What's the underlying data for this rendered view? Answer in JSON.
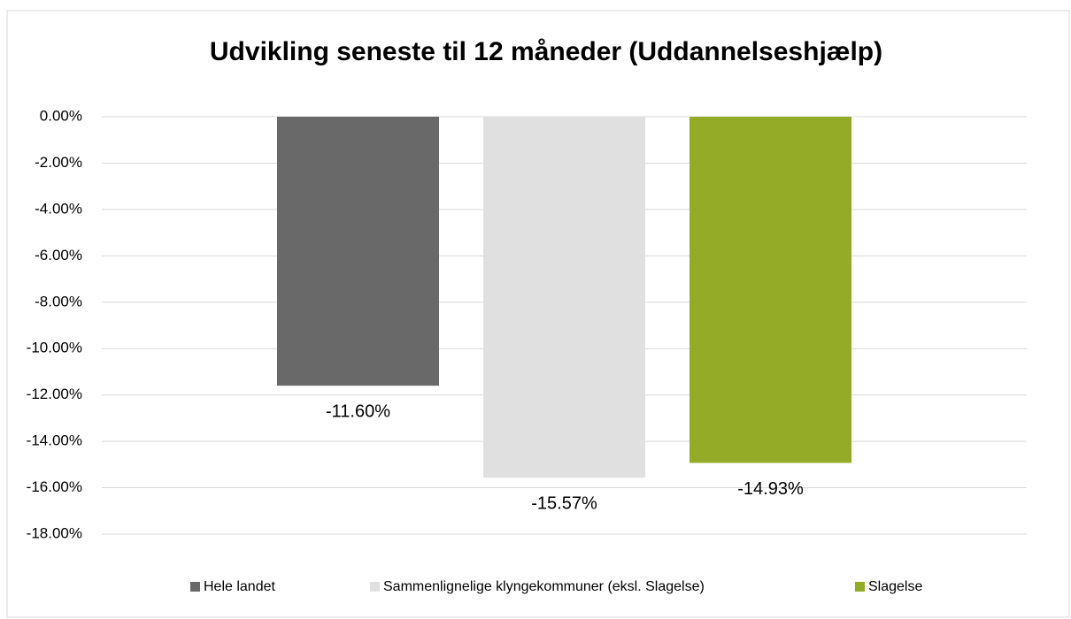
{
  "chart_data": {
    "type": "bar",
    "title": "Udvikling seneste til 12 måneder (Uddannelseshjælp)",
    "categories": [
      null
    ],
    "series": [
      {
        "name": "Hele landet",
        "color": "#696969",
        "values": [
          -11.6
        ],
        "value_labels": [
          "-11.60%"
        ]
      },
      {
        "name": "Sammenlignelige klyngekommuner (eksl. Slagelse)",
        "color": "#e0e0e0",
        "values": [
          -15.57
        ],
        "value_labels": [
          "-15.57%"
        ]
      },
      {
        "name": "Slagelse",
        "color": "#94ab28",
        "values": [
          -14.93
        ],
        "value_labels": [
          "-14.93%"
        ]
      }
    ],
    "ylim": [
      -18,
      0
    ],
    "yticks": [
      {
        "value": 0,
        "label": "0.00%"
      },
      {
        "value": -2,
        "label": "-2.00%"
      },
      {
        "value": -4,
        "label": "-4.00%"
      },
      {
        "value": -6,
        "label": "-6.00%"
      },
      {
        "value": -8,
        "label": "-8.00%"
      },
      {
        "value": -10,
        "label": "-10.00%"
      },
      {
        "value": -12,
        "label": "-12.00%"
      },
      {
        "value": -14,
        "label": "-14.00%"
      },
      {
        "value": -16,
        "label": "-16.00%"
      },
      {
        "value": -18,
        "label": "-18.00%"
      }
    ],
    "grid": true,
    "legend": "bottom"
  }
}
